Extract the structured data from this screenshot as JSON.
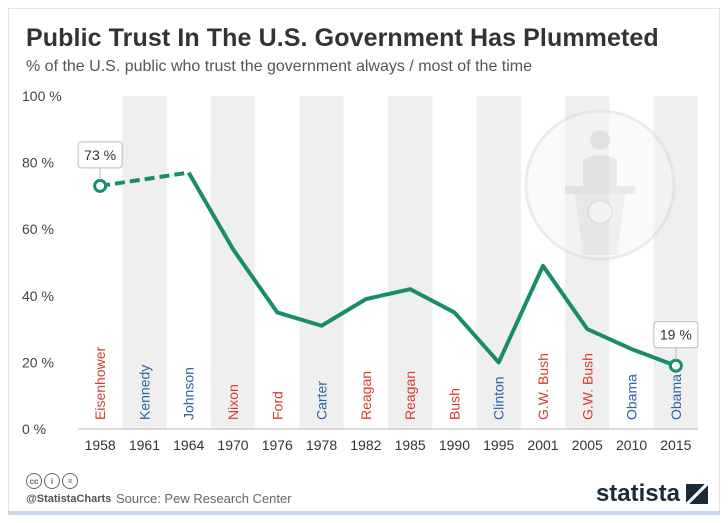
{
  "title": "Public Trust In The U.S. Government Has Plummeted",
  "subtitle": "% of the U.S. public who trust the government always / most of the time",
  "footer": {
    "handle": "@StatistaCharts",
    "source": "Source: Pew Research Center",
    "brand": "statista"
  },
  "icons": [
    "cc-icon",
    "person-icon",
    "equals-icon",
    "podium-icon"
  ],
  "colors": {
    "line": "#1a8c6e",
    "republican": "#d73b2f",
    "democrat": "#2e64a8",
    "band": "#efefef"
  },
  "chart_data": {
    "type": "line",
    "x": [
      "1958",
      "1961",
      "1964",
      "1970",
      "1976",
      "1978",
      "1982",
      "1985",
      "1990",
      "1995",
      "2001",
      "2005",
      "2010",
      "2015"
    ],
    "values": [
      73,
      null,
      77,
      54,
      35,
      31,
      39,
      42,
      35,
      20,
      49,
      30,
      24,
      19
    ],
    "dashed_segment": [
      "1958",
      "1964"
    ],
    "presidents": [
      {
        "name": "Eisenhower",
        "party": "republican"
      },
      {
        "name": "Kennedy",
        "party": "democrat"
      },
      {
        "name": "Johnson",
        "party": "democrat"
      },
      {
        "name": "Nixon",
        "party": "republican"
      },
      {
        "name": "Ford",
        "party": "republican"
      },
      {
        "name": "Carter",
        "party": "democrat"
      },
      {
        "name": "Reagan",
        "party": "republican"
      },
      {
        "name": "Reagan",
        "party": "republican"
      },
      {
        "name": "Bush",
        "party": "republican"
      },
      {
        "name": "Clinton",
        "party": "democrat"
      },
      {
        "name": "G.W. Bush",
        "party": "republican"
      },
      {
        "name": "G.W. Bush",
        "party": "republican"
      },
      {
        "name": "Obama",
        "party": "democrat"
      },
      {
        "name": "Obama",
        "party": "democrat"
      }
    ],
    "yticks": [
      "0 %",
      "20 %",
      "40 %",
      "60 %",
      "80 %",
      "100 %"
    ],
    "ytick_values": [
      0,
      20,
      40,
      60,
      80,
      100
    ],
    "ylim": [
      0,
      100
    ],
    "annotations": [
      {
        "x": "1958",
        "text": "73 %"
      },
      {
        "x": "2015",
        "text": "19 %"
      }
    ],
    "grid": "alternating vertical bands",
    "legend": "none"
  }
}
